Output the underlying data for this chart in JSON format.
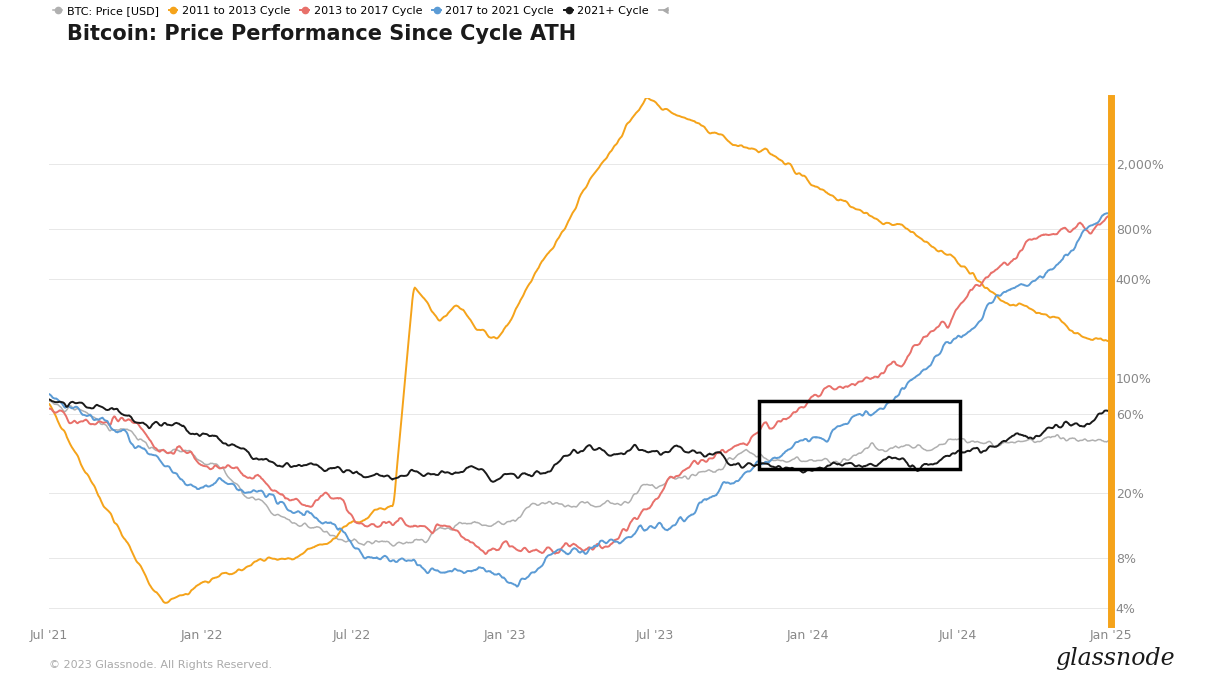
{
  "title": "Bitcoin: Price Performance Since Cycle ATH",
  "title_fontsize": 15,
  "background_color": "#ffffff",
  "ylabel_ticks": [
    4,
    8,
    20,
    60,
    100,
    400,
    800,
    2000
  ],
  "ylabel_labels": [
    "4%",
    "8%",
    "20%",
    "60%",
    "100%",
    "400%",
    "800%",
    "2,000%"
  ],
  "xlim_days": [
    0,
    1279
  ],
  "ylim": [
    3.2,
    5000
  ],
  "tick_positions": [
    0,
    184,
    365,
    549,
    730,
    914,
    1095,
    1279
  ],
  "tick_labels": [
    "Jul '21",
    "Jan '22",
    "Jul '22",
    "Jan '23",
    "Jul '23",
    "Jan '24",
    "Jul '24",
    "Jan '25"
  ],
  "legend_entries": [
    {
      "label": "BTC: Price [USD]",
      "color": "#b0b0b0",
      "lw": 1.1
    },
    {
      "label": "2011 to 2013 Cycle",
      "color": "#f5a31a",
      "lw": 1.4
    },
    {
      "label": "2013 to 2017 Cycle",
      "color": "#e8706a",
      "lw": 1.4
    },
    {
      "label": "2017 to 2021 Cycle",
      "color": "#5b9bd5",
      "lw": 1.4
    },
    {
      "label": "2021+ Cycle",
      "color": "#1a1a1a",
      "lw": 1.4
    }
  ],
  "footer_left": "© 2023 Glassnode. All Rights Reserved.",
  "footer_right": "glassnode",
  "right_border_color": "#f5a31a",
  "grid_color": "#e8e8e8",
  "rect_x0": 855,
  "rect_x1": 1097,
  "rect_y0": 28,
  "rect_y1": 72
}
